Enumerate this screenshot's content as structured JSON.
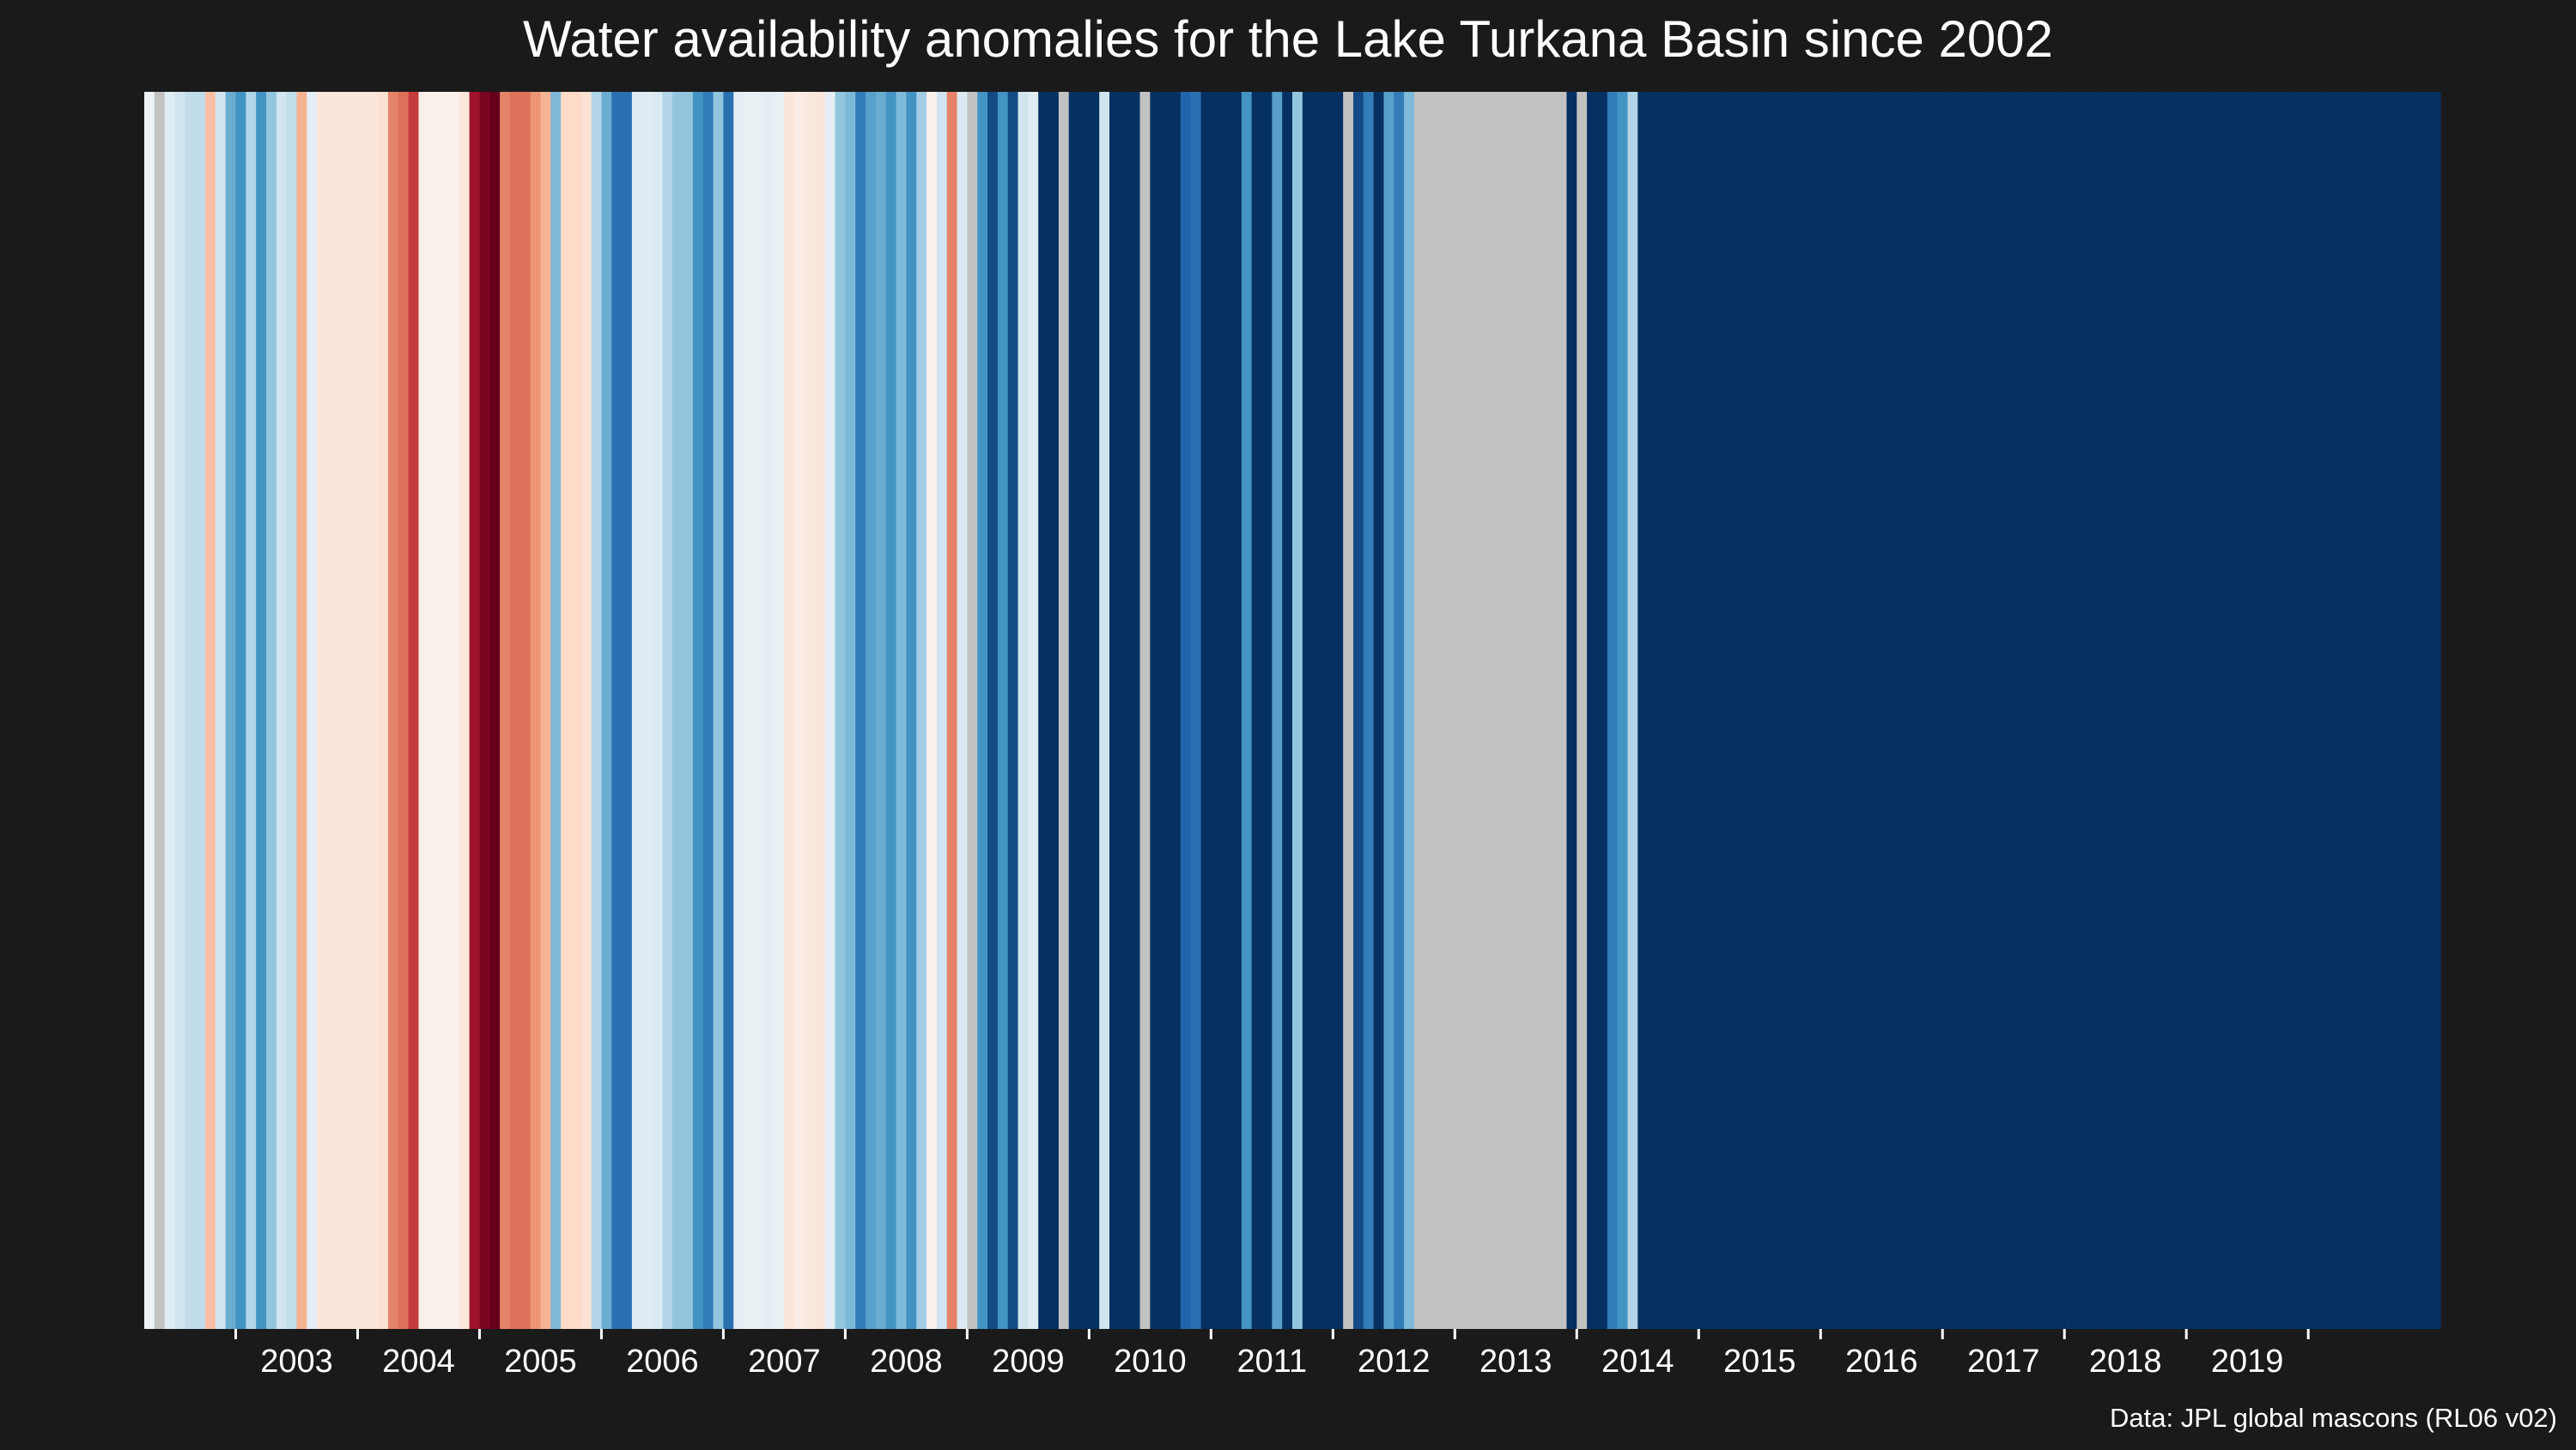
{
  "chart_data": {
    "type": "heatmap",
    "title": "Water availability anomalies for the Lake Turkana Basin since 2002",
    "source": "Data: JPL global mascons (RL06 v02)",
    "x_tick_labels": [
      "2003",
      "2004",
      "2005",
      "2006",
      "2007",
      "2008",
      "2009",
      "2010",
      "2011",
      "2012",
      "2013",
      "2014",
      "2015",
      "2016",
      "2017",
      "2018",
      "2019"
    ],
    "start_month": "2002-04",
    "end_month": "2020-01",
    "colors": {
      "background": "#1a1a1a",
      "missing": "#c2c2c2",
      "text": "#ffffff",
      "scale": [
        "#67001f",
        "#b2182b",
        "#d6604d",
        "#f4a582",
        "#fddbc7",
        "#f7f7f7",
        "#d1e5f0",
        "#92c5de",
        "#4393c3",
        "#2166ac",
        "#053061"
      ]
    },
    "anomaly_scale_note": "Monthly values on a diverging scale from -1 (drier, red) to +1 (wetter, blue); null = no data",
    "monthly_anomaly": [
      0.06,
      null,
      0.12,
      0.2,
      0.25,
      0.25,
      -0.3,
      0.2,
      0.5,
      0.6,
      0.3,
      0.6,
      0.4,
      0.2,
      0.25,
      -0.35,
      0.1,
      -0.12,
      -0.12,
      -0.12,
      -0.12,
      -0.12,
      -0.12,
      -0.15,
      -0.5,
      -0.55,
      -0.7,
      -0.05,
      -0.05,
      -0.05,
      -0.05,
      -0.12,
      -0.85,
      -0.95,
      -1.0,
      -0.5,
      -0.55,
      -0.55,
      -0.45,
      -0.35,
      0.45,
      -0.2,
      -0.2,
      -0.15,
      0.3,
      0.5,
      0.75,
      0.75,
      0.12,
      0.12,
      0.15,
      0.3,
      0.4,
      0.4,
      0.6,
      0.7,
      0.4,
      0.75,
      0.1,
      0.08,
      0.08,
      0.1,
      0.08,
      -0.12,
      -0.08,
      -0.1,
      -0.12,
      0.1,
      0.4,
      0.45,
      0.7,
      0.55,
      0.5,
      0.6,
      0.45,
      0.6,
      0.35,
      -0.05,
      0.2,
      -0.5,
      0.15,
      null,
      0.6,
      0.9,
      0.6,
      0.9,
      0.2,
      0.12,
      1.0,
      1.0,
      null,
      1.0,
      1.0,
      1.0,
      0.2,
      1.0,
      1.0,
      1.0,
      null,
      1.0,
      1.0,
      1.0,
      0.8,
      0.75,
      1.0,
      1.0,
      1.0,
      1.0,
      0.6,
      1.0,
      1.0,
      0.55,
      1.0,
      0.4,
      1.0,
      1.0,
      1.0,
      1.0,
      null,
      0.9,
      0.7,
      1.0,
      0.55,
      0.7,
      0.45,
      null,
      null,
      null,
      null,
      null,
      null,
      null,
      null,
      null,
      null,
      null,
      null,
      null,
      null,
      null,
      1.0,
      null,
      1.0,
      1.0,
      0.7,
      0.6,
      0.3,
      1.0,
      1.0,
      1.0,
      1.0,
      1.0,
      1.0,
      1.0,
      1.0,
      1.0,
      1.0,
      1.0,
      1.0,
      1.0,
      1.0,
      1.0,
      1.0,
      1.0,
      1.0,
      1.0,
      1.0,
      1.0,
      1.0,
      1.0,
      1.0,
      1.0,
      1.0,
      1.0,
      1.0,
      1.0,
      1.0,
      1.0,
      1.0,
      1.0,
      1.0,
      1.0,
      1.0,
      1.0,
      1.0,
      1.0,
      1.0,
      1.0,
      1.0,
      1.0,
      1.0,
      1.0,
      1.0,
      1.0,
      1.0,
      1.0,
      1.0,
      1.0,
      1.0,
      1.0,
      1.0,
      1.0,
      1.0,
      1.0,
      1.0,
      1.0,
      1.0,
      1.0,
      1.0,
      1.0,
      1.0,
      1.0,
      1.0,
      1.0,
      1.0,
      1.0,
      1.0,
      1.0,
      1.0,
      1.0,
      1.0,
      1.0,
      1.0,
      1.0,
      1.0,
      1.0
    ]
  }
}
